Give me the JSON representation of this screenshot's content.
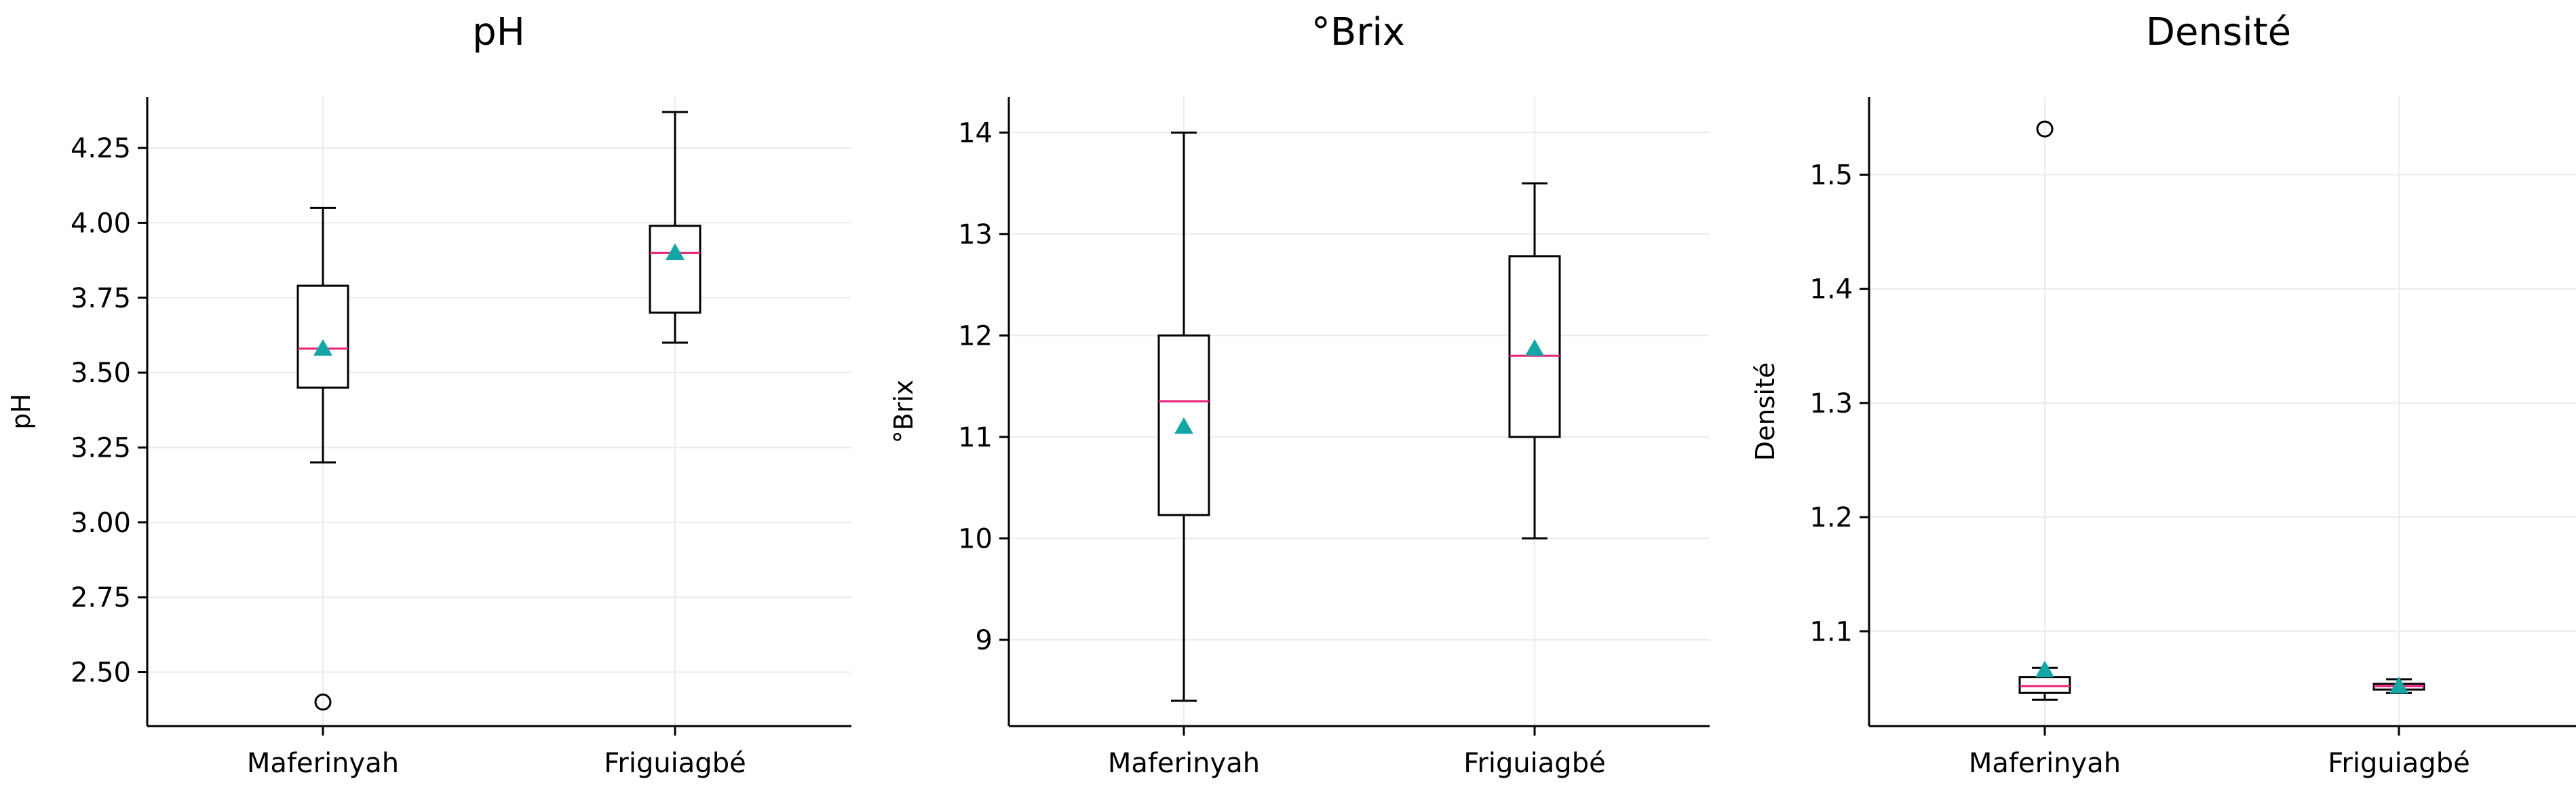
{
  "chart_data": [
    {
      "type": "box",
      "title": "pH",
      "ylabel": "pH",
      "categories": [
        "Maferinyah",
        "Friguiagbé"
      ],
      "ylim": [
        2.32,
        4.42
      ],
      "yticks": [
        "2.50",
        "2.75",
        "3.00",
        "3.25",
        "3.50",
        "3.75",
        "4.00",
        "4.25"
      ],
      "boxes": [
        {
          "category": "Maferinyah",
          "whisker_low": 3.2,
          "q1": 3.45,
          "median": 3.58,
          "q3": 3.79,
          "whisker_high": 4.05,
          "mean": 3.58,
          "outliers": [
            2.4
          ]
        },
        {
          "category": "Friguiagbé",
          "whisker_low": 3.6,
          "q1": 3.7,
          "median": 3.9,
          "q3": 3.99,
          "whisker_high": 4.37,
          "mean": 3.9,
          "outliers": []
        }
      ],
      "grid": true
    },
    {
      "type": "box",
      "title": "°Brix",
      "ylabel": "°Brix",
      "categories": [
        "Maferinyah",
        "Friguiagbé"
      ],
      "ylim": [
        8.15,
        14.35
      ],
      "yticks": [
        "9",
        "10",
        "11",
        "12",
        "13",
        "14"
      ],
      "boxes": [
        {
          "category": "Maferinyah",
          "whisker_low": 8.4,
          "q1": 10.23,
          "median": 11.35,
          "q3": 12.0,
          "whisker_high": 14.0,
          "mean": 11.1,
          "outliers": []
        },
        {
          "category": "Friguiagbé",
          "whisker_low": 10.0,
          "q1": 11.0,
          "median": 11.8,
          "q3": 12.78,
          "whisker_high": 13.5,
          "mean": 11.87,
          "outliers": []
        }
      ],
      "grid": true
    },
    {
      "type": "box",
      "title": "Densité",
      "ylabel": "Densité",
      "categories": [
        "Maferinyah",
        "Friguiagbé"
      ],
      "ylim": [
        1.017,
        1.568
      ],
      "yticks": [
        "1.1",
        "1.2",
        "1.3",
        "1.4",
        "1.5"
      ],
      "boxes": [
        {
          "category": "Maferinyah",
          "whisker_low": 1.04,
          "q1": 1.046,
          "median": 1.052,
          "q3": 1.06,
          "whisker_high": 1.068,
          "mean": 1.066,
          "outliers": [
            1.54
          ]
        },
        {
          "category": "Friguiagbé",
          "whisker_low": 1.046,
          "q1": 1.049,
          "median": 1.052,
          "q3": 1.054,
          "whisker_high": 1.058,
          "mean": 1.052,
          "outliers": []
        }
      ],
      "grid": true
    }
  ],
  "colors": {
    "median": "#e8227a",
    "mean_marker": "#14a6a6",
    "box_stroke": "#000000",
    "grid": "#ebebeb"
  }
}
